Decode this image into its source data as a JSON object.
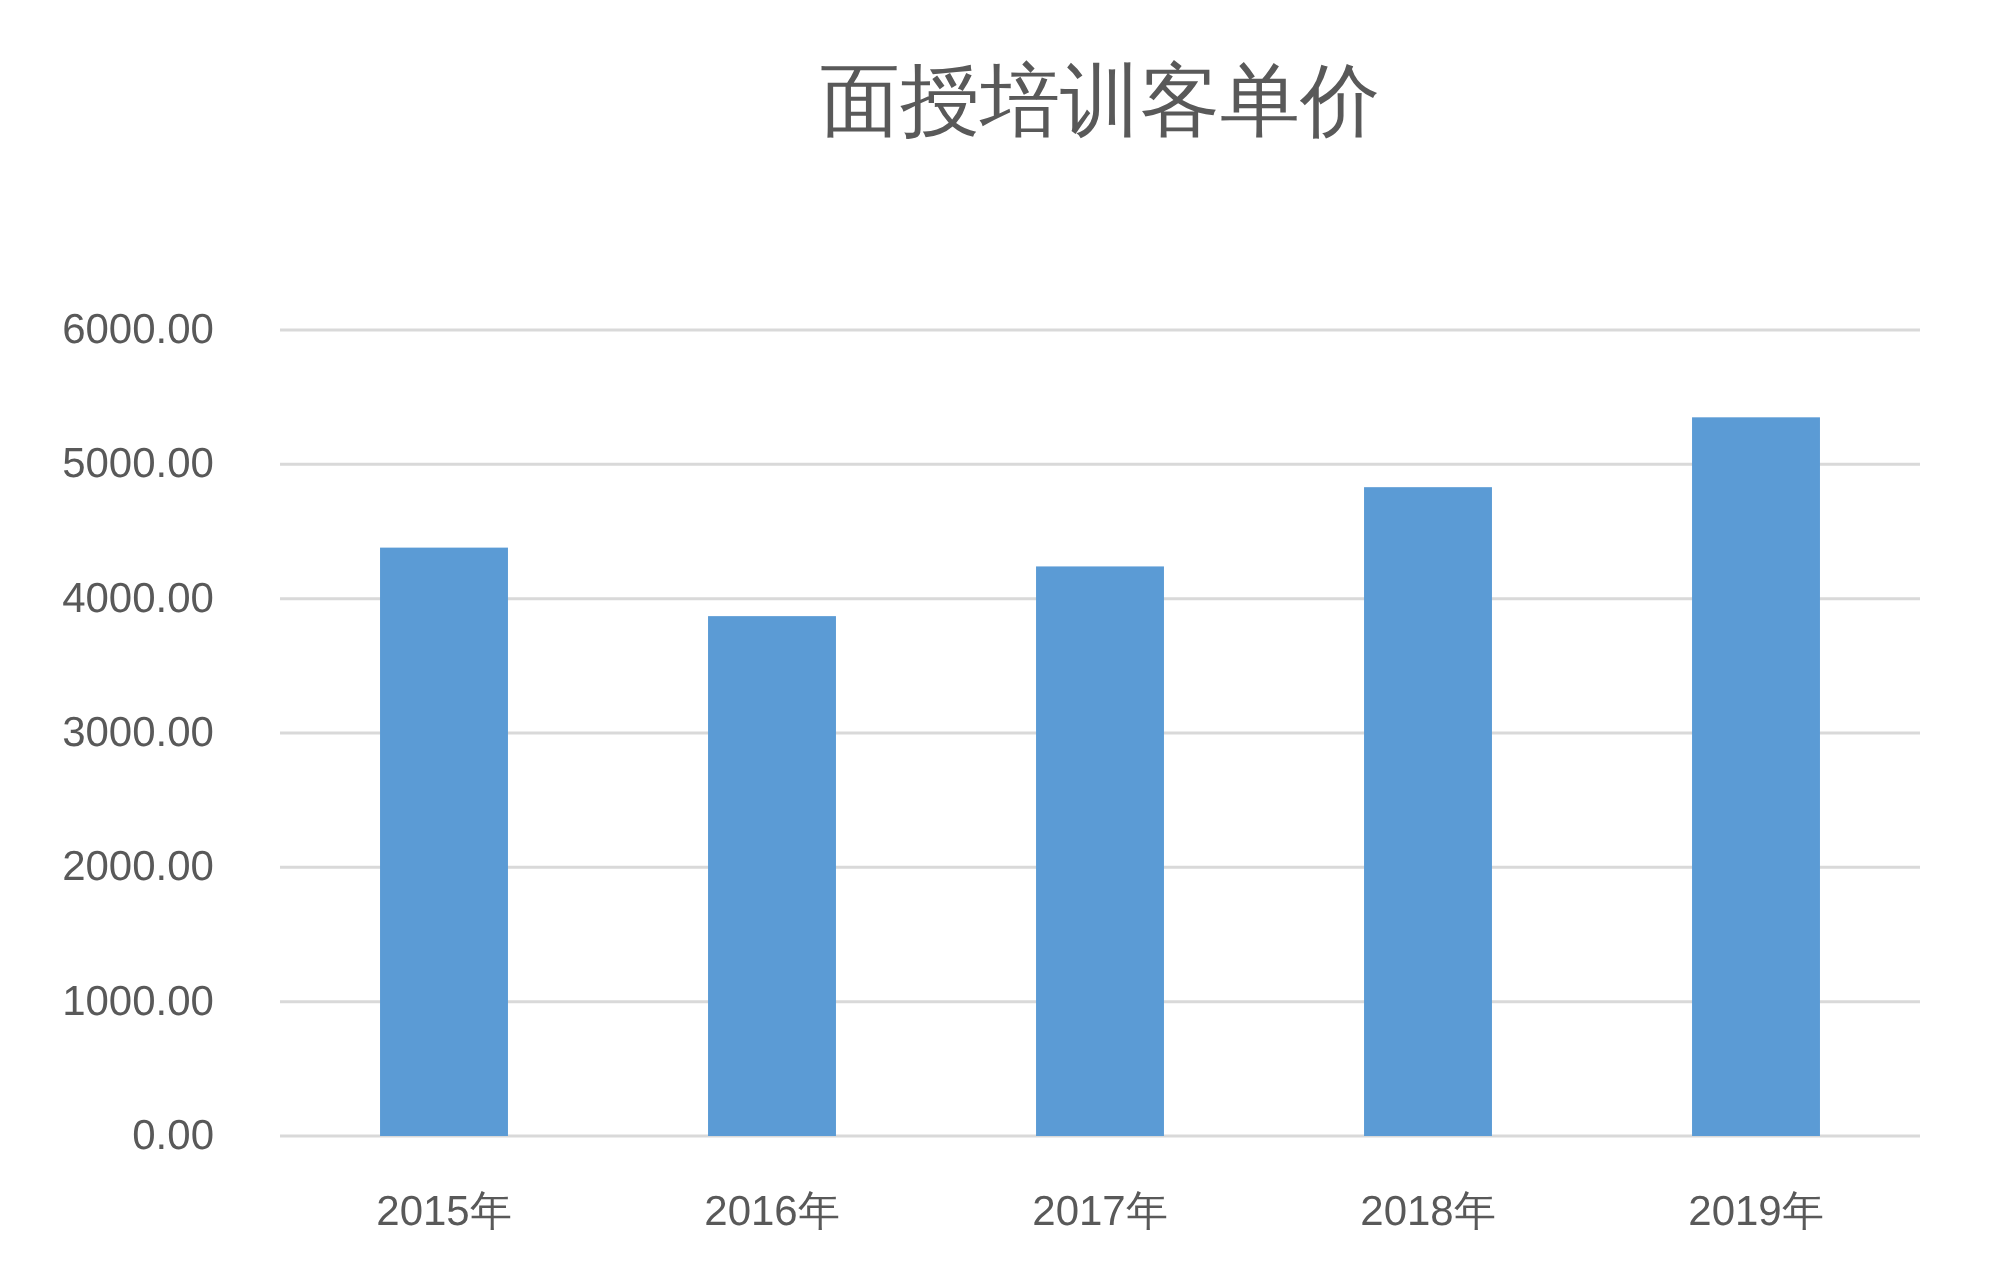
{
  "chart_data": {
    "type": "bar",
    "title": "面授培训客单价",
    "categories": [
      "2015年",
      "2016年",
      "2017年",
      "2018年",
      "2019年"
    ],
    "values": [
      4380,
      3870,
      4240,
      4830,
      5350
    ],
    "color": "#5b9bd5",
    "ylim": [
      0,
      6000
    ],
    "yticks": [
      {
        "value": 0,
        "label": "0.00"
      },
      {
        "value": 1000,
        "label": "1000.00"
      },
      {
        "value": 2000,
        "label": "2000.00"
      },
      {
        "value": 3000,
        "label": "3000.00"
      },
      {
        "value": 4000,
        "label": "4000.00"
      },
      {
        "value": 5000,
        "label": "5000.00"
      },
      {
        "value": 6000,
        "label": "6000.00"
      }
    ],
    "grid": "y"
  }
}
